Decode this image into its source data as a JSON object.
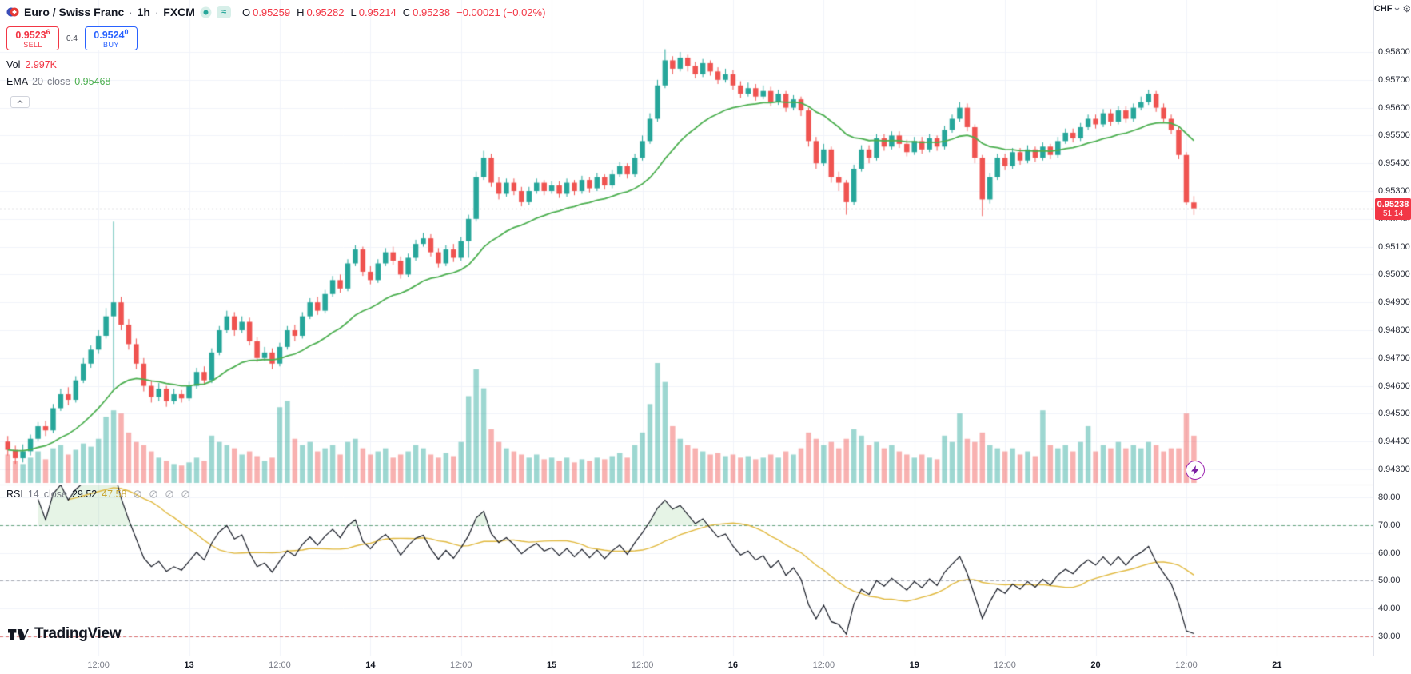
{
  "header": {
    "symbol_title": "Euro / Swiss Franc",
    "dot": "·",
    "timeframe": "1h",
    "exchange": "FXCM",
    "approx_symbol": "≈",
    "ohlc": {
      "o_label": "O",
      "o_value": "0.95259",
      "h_label": "H",
      "h_value": "0.95282",
      "l_label": "L",
      "l_value": "0.95214",
      "c_label": "C",
      "c_value": "0.95238",
      "change": "−0.00021 (−0.02%)"
    },
    "sell": {
      "price": "0.9523",
      "sup": "6",
      "label": "SELL"
    },
    "spread": "0.4",
    "buy": {
      "price": "0.9524",
      "sup": "0",
      "label": "BUY"
    },
    "vol": {
      "label": "Vol",
      "value": "2.997K"
    },
    "ema": {
      "name": "EMA",
      "period": "20",
      "source": "close",
      "value": "0.95468"
    }
  },
  "rsi_header": {
    "name": "RSI",
    "period": "14",
    "source": "close",
    "value": "29.52",
    "ma_value": "47.58"
  },
  "price_axis": {
    "currency": "CHF",
    "current_price": "0.95238",
    "countdown": "51:14",
    "labels": [
      "0.95800",
      "0.95700",
      "0.95600",
      "0.95500",
      "0.95400",
      "0.95300",
      "0.95200",
      "0.95100",
      "0.95000",
      "0.94900",
      "0.94800",
      "0.94700",
      "0.94600",
      "0.94500",
      "0.94400",
      "0.94300"
    ]
  },
  "rsi_axis": {
    "labels": [
      "80.00",
      "70.00",
      "60.00",
      "50.00",
      "40.00",
      "30.00"
    ]
  },
  "time_axis": {
    "ticks": [
      {
        "index": 12,
        "label": "12:00",
        "major": false
      },
      {
        "index": 24,
        "label": "13",
        "major": true
      },
      {
        "index": 36,
        "label": "12:00",
        "major": false
      },
      {
        "index": 48,
        "label": "14",
        "major": true
      },
      {
        "index": 60,
        "label": "12:00",
        "major": false
      },
      {
        "index": 72,
        "label": "15",
        "major": true
      },
      {
        "index": 84,
        "label": "12:00",
        "major": false
      },
      {
        "index": 96,
        "label": "16",
        "major": true
      },
      {
        "index": 108,
        "label": "12:00",
        "major": false
      },
      {
        "index": 120,
        "label": "19",
        "major": true
      },
      {
        "index": 132,
        "label": "12:00",
        "major": false
      },
      {
        "index": 144,
        "label": "20",
        "major": true
      },
      {
        "index": 156,
        "label": "12:00",
        "major": false
      },
      {
        "index": 168,
        "label": "21",
        "major": true
      }
    ]
  },
  "watermark": {
    "brand": "TradingView"
  },
  "icons": {
    "gear": "⚙"
  },
  "colors": {
    "up": "#26a69a",
    "down": "#ef5350",
    "vol_up": "rgba(38,166,154,0.45)",
    "vol_down": "rgba(239,83,80,0.45)",
    "ema": "#4caf50",
    "rsi_line": "#131722",
    "rsi_ma": "#e0b83d",
    "level70": "#66a37f",
    "level50": "#a5a8b2",
    "level30": "#d96c6c",
    "rsi_fill_over": "rgba(76,175,80,0.14)",
    "rsi_fill_under": "rgba(242,54,69,0.12)",
    "grid": "#f0f3fa",
    "price_line": "#9598a1",
    "badge_bg": "#f23645",
    "sell": "#f23645",
    "buy": "#2962ff"
  },
  "chart_data": {
    "type": "candlestick",
    "title": "Euro / Swiss Franc · 1h · FXCM",
    "price_unit": "CHF",
    "scale_divisor": 100000,
    "visible_price_range": [
      0.943,
      0.958
    ],
    "rsi_levels": [
      70,
      50,
      30
    ],
    "legend_position": "top-left",
    "grid": true,
    "series": [
      "EUR/CHF 1h candles",
      "EMA 20",
      "Volume",
      "RSI 14",
      "RSI 14 MA"
    ],
    "indicators": {
      "ema_period": 20,
      "rsi_period": 14,
      "rsi_ma_period": 14,
      "ema_last": 0.95468,
      "rsi_last": 29.52,
      "rsi_ma_last": 47.58,
      "volume_last_k": 2.997
    },
    "candles": [
      [
        94400,
        94420,
        94350,
        94370
      ],
      [
        94370,
        94385,
        94320,
        94340
      ],
      [
        94340,
        94390,
        94325,
        94365
      ],
      [
        94365,
        94425,
        94350,
        94410
      ],
      [
        94410,
        94470,
        94400,
        94455
      ],
      [
        94455,
        94475,
        94420,
        94440
      ],
      [
        94440,
        94535,
        94430,
        94520
      ],
      [
        94520,
        94590,
        94510,
        94570
      ],
      [
        94570,
        94595,
        94530,
        94550
      ],
      [
        94550,
        94635,
        94540,
        94620
      ],
      [
        94620,
        94700,
        94610,
        94680
      ],
      [
        94680,
        94745,
        94665,
        94730
      ],
      [
        94730,
        94800,
        94715,
        94780
      ],
      [
        94780,
        94880,
        94770,
        94850
      ],
      [
        94850,
        95190,
        94590,
        94900
      ],
      [
        94900,
        94920,
        94800,
        94820
      ],
      [
        94820,
        94840,
        94730,
        94750
      ],
      [
        94750,
        94770,
        94660,
        94680
      ],
      [
        94680,
        94700,
        94580,
        94600
      ],
      [
        94600,
        94620,
        94540,
        94560
      ],
      [
        94560,
        94610,
        94545,
        94590
      ],
      [
        94590,
        94600,
        94525,
        94545
      ],
      [
        94545,
        94590,
        94535,
        94570
      ],
      [
        94570,
        94585,
        94540,
        94555
      ],
      [
        94555,
        94615,
        94545,
        94600
      ],
      [
        94600,
        94665,
        94590,
        94650
      ],
      [
        94650,
        94670,
        94605,
        94620
      ],
      [
        94620,
        94735,
        94610,
        94720
      ],
      [
        94720,
        94815,
        94710,
        94800
      ],
      [
        94800,
        94870,
        94790,
        94850
      ],
      [
        94850,
        94865,
        94780,
        94800
      ],
      [
        94800,
        94850,
        94790,
        94830
      ],
      [
        94830,
        94845,
        94745,
        94760
      ],
      [
        94760,
        94775,
        94685,
        94700
      ],
      [
        94700,
        94740,
        94690,
        94720
      ],
      [
        94720,
        94735,
        94660,
        94680
      ],
      [
        94680,
        94755,
        94670,
        94740
      ],
      [
        94740,
        94815,
        94730,
        94800
      ],
      [
        94800,
        94820,
        94760,
        94780
      ],
      [
        94780,
        94865,
        94770,
        94850
      ],
      [
        94850,
        94915,
        94840,
        94900
      ],
      [
        94900,
        94920,
        94855,
        94870
      ],
      [
        94870,
        94945,
        94860,
        94930
      ],
      [
        94930,
        94995,
        94920,
        94980
      ],
      [
        94980,
        95000,
        94935,
        94950
      ],
      [
        94950,
        95055,
        94940,
        95040
      ],
      [
        95040,
        95105,
        95030,
        95090
      ],
      [
        95090,
        95100,
        94995,
        95010
      ],
      [
        95010,
        95030,
        94965,
        94980
      ],
      [
        94980,
        95055,
        94970,
        95040
      ],
      [
        95040,
        95095,
        95030,
        95080
      ],
      [
        95080,
        95100,
        95035,
        95050
      ],
      [
        95050,
        95065,
        94985,
        95000
      ],
      [
        95000,
        95075,
        94990,
        95060
      ],
      [
        95060,
        95125,
        95050,
        95110
      ],
      [
        95110,
        95150,
        95100,
        95130
      ],
      [
        95130,
        95145,
        95065,
        95080
      ],
      [
        95080,
        95095,
        95025,
        95040
      ],
      [
        95040,
        95105,
        95030,
        95090
      ],
      [
        95090,
        95110,
        95045,
        95060
      ],
      [
        95060,
        95135,
        95050,
        95120
      ],
      [
        95120,
        95215,
        95060,
        95200
      ],
      [
        95200,
        95370,
        95190,
        95350
      ],
      [
        95350,
        95445,
        95340,
        95420
      ],
      [
        95420,
        95435,
        95315,
        95330
      ],
      [
        95330,
        95350,
        95270,
        95290
      ],
      [
        95290,
        95345,
        95280,
        95330
      ],
      [
        95330,
        95345,
        95285,
        95300
      ],
      [
        95300,
        95315,
        95245,
        95260
      ],
      [
        95260,
        95315,
        95250,
        95300
      ],
      [
        95300,
        95345,
        95290,
        95330
      ],
      [
        95330,
        95340,
        95285,
        95300
      ],
      [
        95300,
        95335,
        95290,
        95320
      ],
      [
        95320,
        95335,
        95275,
        95290
      ],
      [
        95290,
        95345,
        95280,
        95330
      ],
      [
        95330,
        95340,
        95285,
        95300
      ],
      [
        95300,
        95355,
        95290,
        95340
      ],
      [
        95340,
        95350,
        95295,
        95310
      ],
      [
        95310,
        95365,
        95300,
        95350
      ],
      [
        95350,
        95360,
        95305,
        95320
      ],
      [
        95320,
        95375,
        95310,
        95360
      ],
      [
        95360,
        95405,
        95350,
        95390
      ],
      [
        95390,
        95400,
        95345,
        95360
      ],
      [
        95360,
        95435,
        95350,
        95420
      ],
      [
        95420,
        95500,
        95410,
        95480
      ],
      [
        95480,
        95580,
        95470,
        95560
      ],
      [
        95560,
        95700,
        95550,
        95680
      ],
      [
        95680,
        95810,
        95670,
        95770
      ],
      [
        95770,
        95785,
        95720,
        95740
      ],
      [
        95740,
        95800,
        95730,
        95780
      ],
      [
        95780,
        95790,
        95730,
        95750
      ],
      [
        95750,
        95765,
        95705,
        95720
      ],
      [
        95720,
        95775,
        95710,
        95760
      ],
      [
        95760,
        95770,
        95715,
        95730
      ],
      [
        95730,
        95745,
        95685,
        95700
      ],
      [
        95700,
        95740,
        95690,
        95720
      ],
      [
        95720,
        95735,
        95665,
        95680
      ],
      [
        95680,
        95695,
        95635,
        95650
      ],
      [
        95650,
        95690,
        95640,
        95670
      ],
      [
        95670,
        95685,
        95625,
        95640
      ],
      [
        95640,
        95680,
        95630,
        95660
      ],
      [
        95660,
        95675,
        95605,
        95620
      ],
      [
        95620,
        95665,
        95610,
        95650
      ],
      [
        95650,
        95660,
        95585,
        95600
      ],
      [
        95600,
        95645,
        95590,
        95630
      ],
      [
        95630,
        95640,
        95570,
        95590
      ],
      [
        95590,
        95600,
        95460,
        95480
      ],
      [
        95480,
        95495,
        95380,
        95400
      ],
      [
        95400,
        95470,
        95390,
        95450
      ],
      [
        95450,
        95460,
        95330,
        95350
      ],
      [
        95350,
        95370,
        95300,
        95330
      ],
      [
        95330,
        95340,
        95215,
        95260
      ],
      [
        95260,
        95395,
        95250,
        95380
      ],
      [
        95380,
        95465,
        95370,
        95450
      ],
      [
        95450,
        95465,
        95400,
        95420
      ],
      [
        95420,
        95505,
        95410,
        95490
      ],
      [
        95490,
        95505,
        95445,
        95460
      ],
      [
        95460,
        95515,
        95450,
        95500
      ],
      [
        95500,
        95515,
        95455,
        95470
      ],
      [
        95470,
        95485,
        95425,
        95440
      ],
      [
        95440,
        95495,
        95430,
        95480
      ],
      [
        95480,
        95495,
        95435,
        95450
      ],
      [
        95450,
        95505,
        95440,
        95490
      ],
      [
        95490,
        95500,
        95445,
        95460
      ],
      [
        95460,
        95535,
        95450,
        95520
      ],
      [
        95520,
        95575,
        95510,
        95560
      ],
      [
        95560,
        95620,
        95550,
        95600
      ],
      [
        95600,
        95615,
        95515,
        95530
      ],
      [
        95530,
        95540,
        95400,
        95420
      ],
      [
        95420,
        95430,
        95210,
        95270
      ],
      [
        95270,
        95365,
        95255,
        95350
      ],
      [
        95350,
        95435,
        95340,
        95420
      ],
      [
        95420,
        95435,
        95375,
        95390
      ],
      [
        95390,
        95455,
        95380,
        95440
      ],
      [
        95440,
        95455,
        95395,
        95410
      ],
      [
        95410,
        95465,
        95400,
        95450
      ],
      [
        95450,
        95460,
        95405,
        95420
      ],
      [
        95420,
        95475,
        95410,
        95460
      ],
      [
        95460,
        95470,
        95415,
        95430
      ],
      [
        95430,
        95495,
        95420,
        95480
      ],
      [
        95480,
        95525,
        95470,
        95510
      ],
      [
        95510,
        95525,
        95475,
        95490
      ],
      [
        95490,
        95545,
        95480,
        95530
      ],
      [
        95530,
        95575,
        95520,
        95560
      ],
      [
        95560,
        95575,
        95525,
        95540
      ],
      [
        95540,
        95595,
        95530,
        95580
      ],
      [
        95580,
        95595,
        95535,
        95550
      ],
      [
        95550,
        95605,
        95540,
        95590
      ],
      [
        95590,
        95605,
        95545,
        95560
      ],
      [
        95560,
        95615,
        95550,
        95600
      ],
      [
        95600,
        95640,
        95590,
        95620
      ],
      [
        95620,
        95665,
        95610,
        95650
      ],
      [
        95650,
        95660,
        95585,
        95600
      ],
      [
        95600,
        95615,
        95545,
        95560
      ],
      [
        95560,
        95575,
        95505,
        95520
      ],
      [
        95520,
        95530,
        95415,
        95430
      ],
      [
        95430,
        95440,
        95250,
        95259
      ],
      [
        95259,
        95282,
        95214,
        95238
      ]
    ],
    "volumes": [
      1.8,
      1.4,
      1.2,
      1.6,
      2.0,
      1.5,
      2.2,
      2.4,
      1.8,
      2.1,
      2.5,
      2.3,
      2.8,
      4.2,
      4.6,
      4.4,
      3.2,
      2.6,
      2.4,
      2.0,
      1.6,
      1.4,
      1.2,
      1.1,
      1.3,
      1.6,
      1.4,
      3.0,
      2.6,
      2.4,
      2.2,
      1.8,
      2.0,
      1.7,
      1.4,
      1.6,
      4.8,
      5.2,
      2.8,
      2.4,
      2.6,
      2.0,
      2.2,
      2.4,
      1.8,
      2.6,
      2.8,
      2.2,
      1.8,
      2.0,
      2.2,
      1.6,
      1.8,
      2.0,
      2.4,
      2.2,
      1.8,
      1.6,
      1.9,
      1.7,
      2.6,
      5.5,
      7.2,
      6.0,
      3.4,
      2.6,
      2.2,
      2.0,
      1.8,
      1.6,
      1.8,
      1.5,
      1.6,
      1.4,
      1.6,
      1.3,
      1.5,
      1.4,
      1.6,
      1.5,
      1.7,
      1.9,
      1.6,
      2.4,
      3.2,
      5.0,
      7.6,
      6.4,
      3.6,
      2.8,
      2.4,
      2.2,
      2.0,
      1.8,
      1.9,
      1.7,
      1.8,
      1.6,
      1.7,
      1.5,
      1.6,
      1.8,
      1.6,
      2.0,
      1.8,
      2.2,
      3.2,
      2.8,
      2.4,
      2.6,
      2.2,
      2.8,
      3.4,
      3.0,
      2.4,
      2.6,
      2.2,
      2.4,
      2.0,
      1.8,
      1.6,
      1.8,
      1.6,
      1.5,
      3.0,
      2.6,
      4.4,
      2.8,
      2.6,
      3.2,
      2.4,
      2.2,
      2.0,
      2.2,
      1.8,
      2.0,
      1.7,
      4.6,
      2.4,
      2.2,
      2.4,
      2.0,
      2.6,
      3.6,
      2.0,
      2.4,
      2.2,
      2.6,
      2.2,
      2.4,
      2.2,
      2.6,
      2.4,
      2.0,
      2.2,
      2.2,
      4.4,
      2.997
    ]
  }
}
